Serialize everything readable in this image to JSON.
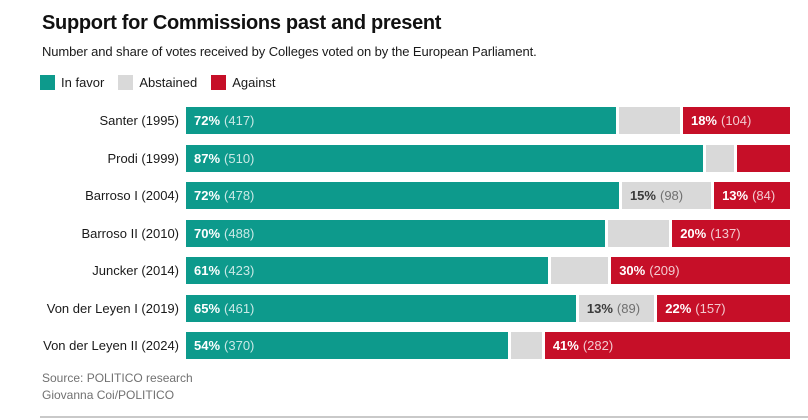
{
  "header": {
    "title": "Support for Commissions past and present",
    "subtitle": "Number and share of votes received by Colleges voted on by the European Parliament."
  },
  "legend": [
    {
      "label": "In favor",
      "color": "#0d9a8c"
    },
    {
      "label": "Abstained",
      "color": "#d9d9d9"
    },
    {
      "label": "Against",
      "color": "#c60f28"
    }
  ],
  "chart_data": {
    "type": "bar",
    "variant": "horizontal-stacked",
    "unit": "share of votes in % (number of votes)",
    "categories": [
      "Santer (1995)",
      "Prodi (1999)",
      "Barroso I (2004)",
      "Barroso II (2010)",
      "Juncker (2014)",
      "Von der Leyen I (2019)",
      "Von der Leyen II (2024)"
    ],
    "series": [
      {
        "name": "In favor",
        "color": "#0d9a8c",
        "shares_pct": [
          71.9,
          86.5,
          72.4,
          70.0,
          60.5,
          65.2,
          53.8
        ],
        "labels": [
          "72% (417)",
          "87% (510)",
          "72% (478)",
          "70% (488)",
          "61% (423)",
          "65% (461)",
          "54% (370)"
        ]
      },
      {
        "name": "Abstained",
        "color": "#d9d9d9",
        "shares_pct": [
          10.2,
          4.6,
          14.9,
          10.3,
          9.6,
          12.6,
          5.2
        ],
        "labels": [
          "",
          "",
          "15% (98)",
          "",
          "",
          "13% (89)",
          ""
        ]
      },
      {
        "name": "Against",
        "color": "#c60f28",
        "shares_pct": [
          17.9,
          8.9,
          12.7,
          19.7,
          29.9,
          22.2,
          41.0
        ],
        "labels": [
          "18% (104)",
          "",
          "13% (84)",
          "20% (137)",
          "30% (209)",
          "22% (157)",
          "41% (282)"
        ]
      }
    ],
    "xlim": [
      0,
      100
    ],
    "grid": false,
    "legend_position": "top"
  },
  "footer": {
    "source": "Source: POLITICO research",
    "credit": "Giovanna Coi/POLITICO"
  }
}
